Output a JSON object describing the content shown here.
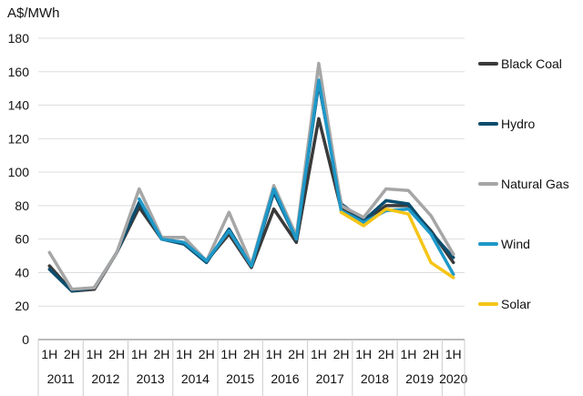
{
  "chart_data": {
    "type": "line",
    "unit_label": "A$/MWh",
    "title": "",
    "xlabel": "",
    "ylabel": "",
    "ylim": [
      0,
      180
    ],
    "yticks": [
      0,
      20,
      40,
      60,
      80,
      100,
      120,
      140,
      160,
      180
    ],
    "grid": true,
    "legend_position": "right",
    "categories": [
      "1H",
      "2H",
      "1H",
      "2H",
      "1H",
      "2H",
      "1H",
      "2H",
      "1H",
      "2H",
      "1H",
      "2H",
      "1H",
      "2H",
      "1H",
      "2H",
      "1H",
      "2H",
      "1H"
    ],
    "year_groups": [
      {
        "label": "2011",
        "count": 2
      },
      {
        "label": "2012",
        "count": 2
      },
      {
        "label": "2013",
        "count": 2
      },
      {
        "label": "2014",
        "count": 2
      },
      {
        "label": "2015",
        "count": 2
      },
      {
        "label": "2016",
        "count": 2
      },
      {
        "label": "2017",
        "count": 2
      },
      {
        "label": "2018",
        "count": 2
      },
      {
        "label": "2019",
        "count": 2
      },
      {
        "label": "2020",
        "count": 1
      }
    ],
    "series": [
      {
        "name": "Black Coal",
        "color": "#3a3a3a",
        "values": [
          44,
          29,
          30,
          52,
          79,
          60,
          58,
          47,
          63,
          43,
          78,
          58,
          132,
          78,
          70,
          80,
          80,
          65,
          46
        ]
      },
      {
        "name": "Hydro",
        "color": "#0b4d6e",
        "values": [
          42,
          29,
          31,
          52,
          82,
          60,
          57,
          46,
          66,
          44,
          88,
          60,
          153,
          81,
          71,
          83,
          81,
          64,
          49
        ]
      },
      {
        "name": "Natural Gas",
        "color": "#a6a6a6",
        "values": [
          52,
          30,
          31,
          52,
          90,
          61,
          61,
          47,
          76,
          45,
          92,
          62,
          165,
          80,
          73,
          90,
          89,
          74,
          51
        ]
      },
      {
        "name": "Wind",
        "color": "#1e98c8",
        "values": [
          null,
          null,
          null,
          null,
          84,
          60,
          58,
          47,
          65,
          44,
          90,
          60,
          155,
          77,
          70,
          77,
          78,
          63,
          39
        ]
      },
      {
        "name": "Solar",
        "color": "#f5c518",
        "values": [
          null,
          null,
          null,
          null,
          null,
          null,
          null,
          null,
          null,
          null,
          null,
          null,
          null,
          76,
          68,
          78,
          75,
          46,
          37
        ]
      }
    ]
  }
}
